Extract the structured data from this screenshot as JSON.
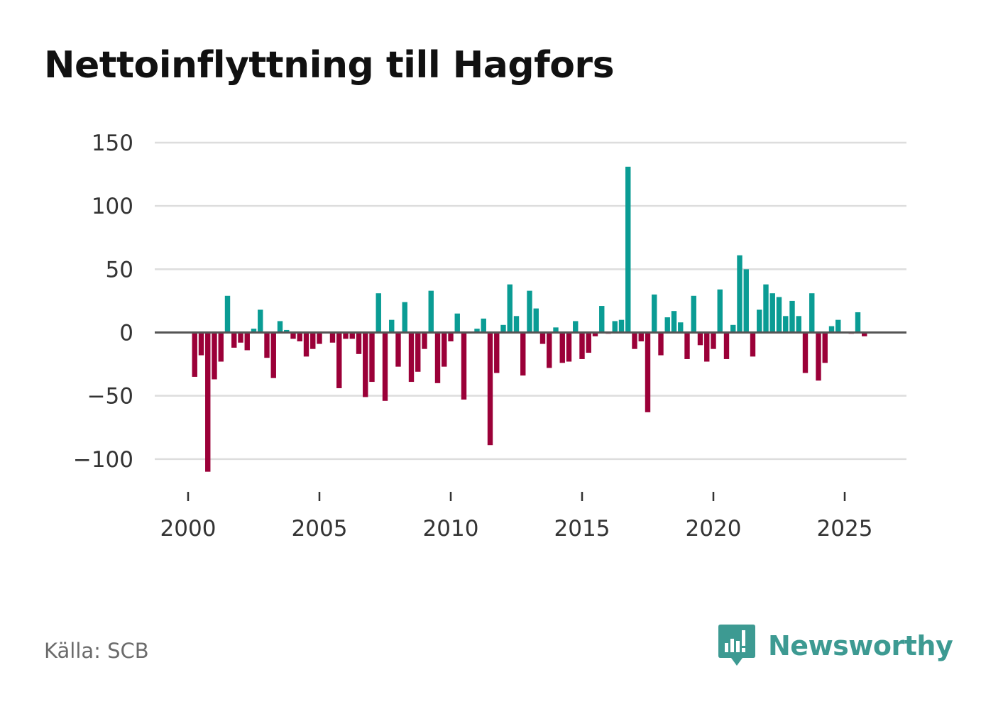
{
  "title": "Nettoinflyttning till Hagfors",
  "source": "Källa: SCB",
  "brand": {
    "name": "Newsworthy",
    "icon": "newsworthy-logo-icon"
  },
  "colors": {
    "positive": "#0a9c94",
    "negative": "#9b0038",
    "grid": "#dddddd",
    "zero": "#555555",
    "brand": "#3d9a92"
  },
  "chart_data": {
    "type": "bar",
    "title": "Nettoinflyttning till Hagfors",
    "xlabel": "",
    "ylabel": "",
    "frequency": "quarterly",
    "x_start": 2000.25,
    "x_step": 0.25,
    "xlim": [
      1999.95,
      2027.45
    ],
    "ylim": [
      -130,
      150
    ],
    "yticks": [
      150,
      100,
      50,
      0,
      -50,
      -100
    ],
    "ytick_labels": [
      "150",
      "100",
      "50",
      "0",
      "−50",
      "−100"
    ],
    "xticks": [
      2000,
      2005,
      2010,
      2015,
      2020,
      2025
    ],
    "xtick_labels": [
      "2000",
      "2005",
      "2010",
      "2015",
      "2020",
      "2025"
    ],
    "grid": true,
    "values": [
      -35,
      -18,
      -110,
      -37,
      -23,
      29,
      -12,
      -8,
      -14,
      3,
      18,
      -20,
      -36,
      9,
      2,
      -5,
      -7,
      -19,
      -13,
      -9,
      0,
      -8,
      -44,
      -5,
      -5,
      -17,
      -51,
      -39,
      31,
      -54,
      10,
      -27,
      24,
      -39,
      -31,
      -13,
      33,
      -40,
      -27,
      -7,
      15,
      -53,
      0,
      3,
      11,
      -89,
      -32,
      6,
      38,
      13,
      -34,
      33,
      19,
      -9,
      -28,
      4,
      -24,
      -23,
      9,
      -21,
      -16,
      -3,
      21,
      -1,
      9,
      10,
      131,
      -13,
      -7,
      -63,
      30,
      -18,
      12,
      17,
      8,
      -21,
      29,
      -10,
      -23,
      -13,
      34,
      -21,
      6,
      61,
      50,
      -19,
      18,
      38,
      31,
      28,
      13,
      25,
      13,
      -32,
      31,
      -38,
      -24,
      5,
      10,
      0,
      -1,
      16,
      -3
    ]
  }
}
